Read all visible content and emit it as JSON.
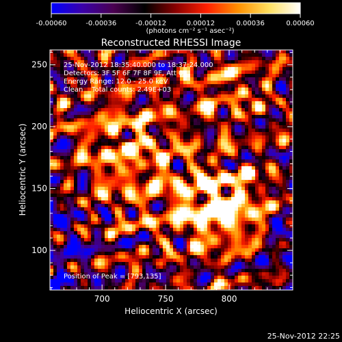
{
  "colorbar": {
    "tick_labels": [
      "-0.00060",
      "-0.00036",
      "-0.00012",
      "0.00012",
      "0.00036",
      "0.00060"
    ],
    "tick_values": [
      -0.0006,
      -0.00036,
      -0.00012,
      0.00012,
      0.00036,
      0.0006
    ],
    "range": [
      -0.0006,
      0.0006
    ],
    "unit_label": "(photons cm⁻² s⁻¹ asec⁻²)",
    "colors": [
      "#0000ff",
      "#3a00a8",
      "#4a0050",
      "#000000",
      "#8a0000",
      "#ff2000",
      "#ff9000",
      "#ffe060",
      "#ffffff"
    ]
  },
  "chart_data": {
    "type": "heatmap",
    "title": "Reconstructed RHESSI Image",
    "xlabel": "Heliocentric X (arcsec)",
    "ylabel": "Heliocentric Y (arcsec)",
    "xlim": [
      659,
      850
    ],
    "ylim": [
      68,
      262
    ],
    "x_ticks": [
      700,
      750,
      800
    ],
    "y_ticks": [
      100,
      150,
      200,
      250
    ],
    "peak": [
      793,
      135
    ],
    "annotations": [
      "25-Nov-2012 18:35:40.000 to 18:37:24.000",
      "Detectors: 3F 5F 6F 7F 8F 9F, Att 0",
      "Energy Range: 12.0 - 25.0 keV",
      "Clean    Total counts: 2.49E+03"
    ],
    "peak_label": "Position of Peak = [793,135]"
  },
  "footer": {
    "timestamp": "25-Nov-2012 22:25"
  }
}
